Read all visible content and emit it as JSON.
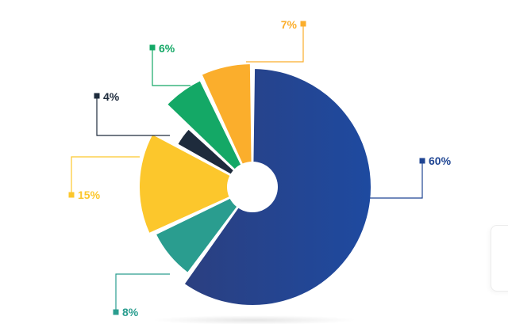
{
  "chart_data": {
    "type": "pie",
    "variant": "rose-donut",
    "title": "",
    "slices": [
      {
        "label": "60%",
        "value": 60,
        "color": "#1f4593"
      },
      {
        "label": "8%",
        "value": 8,
        "color": "#2a9d8f"
      },
      {
        "label": "15%",
        "value": 15,
        "color": "#fcc72c"
      },
      {
        "label": "4%",
        "value": 4,
        "color": "#1e2b3c"
      },
      {
        "label": "6%",
        "value": 6,
        "color": "#14a866"
      },
      {
        "label": "7%",
        "value": 7,
        "color": "#fbae2c"
      }
    ],
    "legend": "none",
    "grid": false
  }
}
